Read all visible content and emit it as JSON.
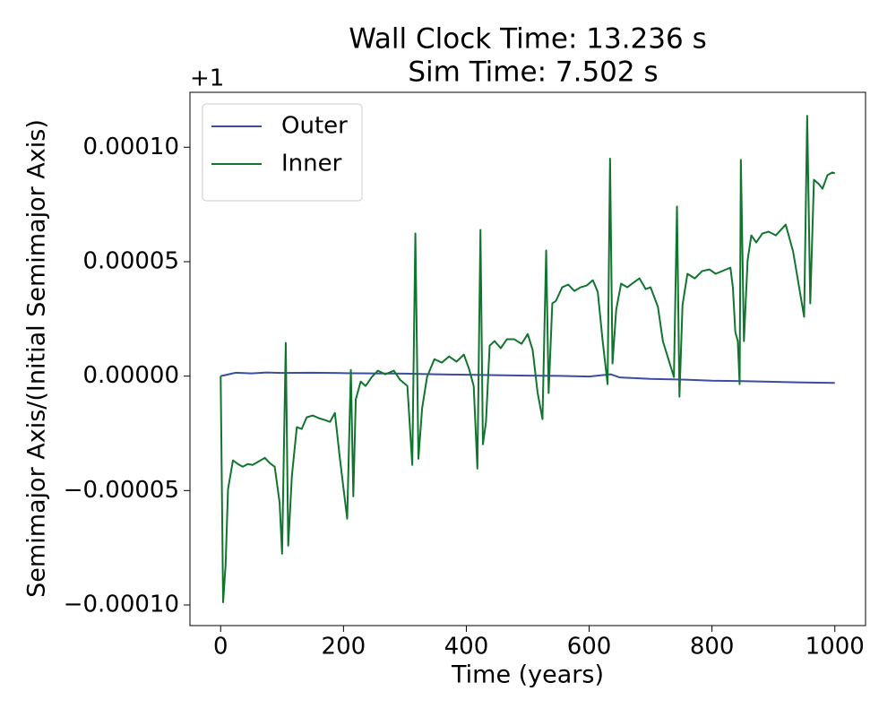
{
  "chart_data": {
    "type": "line",
    "title": [
      "Wall Clock Time: 13.236 s",
      "Sim Time: 7.502 s"
    ],
    "x_label": "Time (years)",
    "y_label": "Semimajor Axis/(Initial Semimajor Axis)",
    "y_offset_label": "+1",
    "xlim": [
      -50,
      1050
    ],
    "ylim": [
      -0.000109,
      0.000124
    ],
    "xticks": [
      0,
      200,
      400,
      600,
      800,
      1000
    ],
    "yticks": [
      {
        "value": -0.0001,
        "label": "−0.00010"
      },
      {
        "value": -5e-05,
        "label": "−0.00005"
      },
      {
        "value": 0,
        "label": "0.00000"
      },
      {
        "value": 5e-05,
        "label": "0.00005"
      },
      {
        "value": 0.0001,
        "label": "0.00010"
      }
    ],
    "legend": "upper left",
    "series": [
      {
        "name": "Outer",
        "color": "#3a4d9f",
        "x": [
          0,
          25,
          50,
          75,
          100,
          150,
          200,
          250,
          300,
          350,
          400,
          450,
          500,
          550,
          600,
          635,
          650,
          700,
          750,
          800,
          850,
          900,
          950,
          1000
        ],
        "values": [
          0,
          1.5e-06,
          1.2e-06,
          1.6e-06,
          1.4e-06,
          1.5e-06,
          1.3e-06,
          1.2e-06,
          1.1e-06,
          8e-07,
          6e-07,
          4e-07,
          2e-07,
          1e-07,
          -2e-07,
          8e-07,
          -6e-07,
          -1.2e-06,
          -1.5e-06,
          -2e-06,
          -2.2e-06,
          -2.5e-06,
          -2.8e-06,
          -3e-06
        ]
      },
      {
        "name": "Inner",
        "color": "#11742f",
        "x": [
          0,
          4,
          8,
          12,
          20,
          28,
          36,
          44,
          52,
          60,
          72,
          80,
          88,
          96,
          100,
          106,
          110,
          116,
          124,
          132,
          140,
          150,
          160,
          170,
          178,
          186,
          194,
          206,
          212,
          216,
          220,
          228,
          236,
          246,
          256,
          268,
          282,
          292,
          304,
          312,
          317,
          322,
          328,
          336,
          348,
          360,
          372,
          384,
          396,
          404,
          412,
          418,
          423,
          427,
          432,
          438,
          446,
          456,
          466,
          478,
          490,
          500,
          508,
          516,
          524,
          530,
          534,
          540,
          546,
          556,
          566,
          576,
          586,
          596,
          606,
          614,
          622,
          630,
          634,
          638,
          644,
          652,
          662,
          672,
          682,
          692,
          700,
          712,
          720,
          738,
          743,
          747,
          752,
          760,
          772,
          784,
          796,
          806,
          830,
          834,
          838,
          842,
          845,
          847,
          852,
          858,
          864,
          872,
          882,
          892,
          904,
          920,
          932,
          950,
          955,
          960,
          966,
          974,
          980,
          988,
          996,
          1000
        ],
        "values": [
          0,
          -9.88e-05,
          -8.27e-05,
          -4.94e-05,
          -3.68e-05,
          -3.84e-05,
          -3.96e-05,
          -3.84e-05,
          -3.88e-05,
          -3.76e-05,
          -3.57e-05,
          -3.8e-05,
          -3.96e-05,
          -5.53e-05,
          -7.76e-05,
          1.45e-05,
          -7.41e-05,
          -4.35e-05,
          -2.23e-05,
          -2.31e-05,
          -1.8e-05,
          -1.72e-05,
          -1.84e-05,
          -1.92e-05,
          -2e-05,
          -1.61e-05,
          -3.57e-05,
          -6.23e-05,
          2.7e-06,
          -5.25e-05,
          -1.02e-05,
          -2.4e-06,
          -4.3e-06,
          -4e-07,
          2.4e-06,
          8e-07,
          2.4e-06,
          -1.6e-06,
          -4.3e-06,
          -3.88e-05,
          6.23e-05,
          -3.61e-05,
          -1.41e-05,
          -4e-07,
          7.4e-06,
          5.9e-06,
          8.6e-06,
          6.3e-06,
          9.4e-06,
          3.5e-06,
          -4.3e-06,
          -4.04e-05,
          6.39e-05,
          -2.98e-05,
          -2e-05,
          1.33e-05,
          1.53e-05,
          1.22e-05,
          1.61e-05,
          1.61e-05,
          1.41e-05,
          1.84e-05,
          1.14e-05,
          -7.1e-06,
          -1.88e-05,
          5.49e-05,
          -7.4e-06,
          3.18e-05,
          3.29e-05,
          3.88e-05,
          4e-05,
          3.72e-05,
          3.88e-05,
          3.96e-05,
          4.19e-05,
          3.68e-05,
          1.53e-05,
          -3.5e-06,
          9.5e-05,
          5.5e-06,
          2.9e-05,
          4.04e-05,
          3.88e-05,
          4.08e-05,
          4.27e-05,
          3.8e-05,
          3.88e-05,
          3.02e-05,
          1.53e-05,
          -4e-07,
          7.41e-05,
          -9e-06,
          3.1e-05,
          4.47e-05,
          4.27e-05,
          4.59e-05,
          4.66e-05,
          4.47e-05,
          4.74e-05,
          3.88e-05,
          1.92e-05,
          1.53e-05,
          -3.5e-06,
          9.45e-05,
          1.53e-05,
          5.06e-05,
          6.15e-05,
          5.84e-05,
          6.23e-05,
          6.31e-05,
          6.15e-05,
          6.62e-05,
          5.45e-05,
          2.59e-05,
          0.0001137,
          3.18e-05,
          8.58e-05,
          8.39e-05,
          8.19e-05,
          8.78e-05,
          8.9e-05,
          8.86e-05
        ]
      }
    ]
  }
}
